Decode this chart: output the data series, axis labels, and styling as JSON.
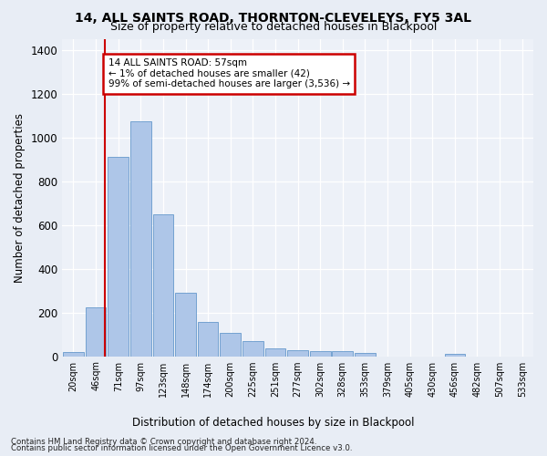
{
  "title": "14, ALL SAINTS ROAD, THORNTON-CLEVELEYS, FY5 3AL",
  "subtitle": "Size of property relative to detached houses in Blackpool",
  "xlabel": "Distribution of detached houses by size in Blackpool",
  "ylabel": "Number of detached properties",
  "bar_labels": [
    "20sqm",
    "46sqm",
    "71sqm",
    "97sqm",
    "123sqm",
    "148sqm",
    "174sqm",
    "200sqm",
    "225sqm",
    "251sqm",
    "277sqm",
    "302sqm",
    "328sqm",
    "353sqm",
    "379sqm",
    "405sqm",
    "430sqm",
    "456sqm",
    "482sqm",
    "507sqm",
    "533sqm"
  ],
  "bar_values": [
    18,
    225,
    910,
    1075,
    650,
    290,
    155,
    105,
    68,
    35,
    27,
    25,
    22,
    15,
    0,
    0,
    0,
    12,
    0,
    0,
    0
  ],
  "bar_color": "#aec6e8",
  "bar_edgecolor": "#6699cc",
  "vline_color": "#cc0000",
  "vline_x": 1.42,
  "annotation_text": "14 ALL SAINTS ROAD: 57sqm\n← 1% of detached houses are smaller (42)\n99% of semi-detached houses are larger (3,536) →",
  "annotation_box_color": "#cc0000",
  "ylim": [
    0,
    1450
  ],
  "yticks": [
    0,
    200,
    400,
    600,
    800,
    1000,
    1200,
    1400
  ],
  "footer_line1": "Contains HM Land Registry data © Crown copyright and database right 2024.",
  "footer_line2": "Contains public sector information licensed under the Open Government Licence v3.0.",
  "bg_color": "#e8edf5",
  "plot_bg_color": "#edf1f8"
}
